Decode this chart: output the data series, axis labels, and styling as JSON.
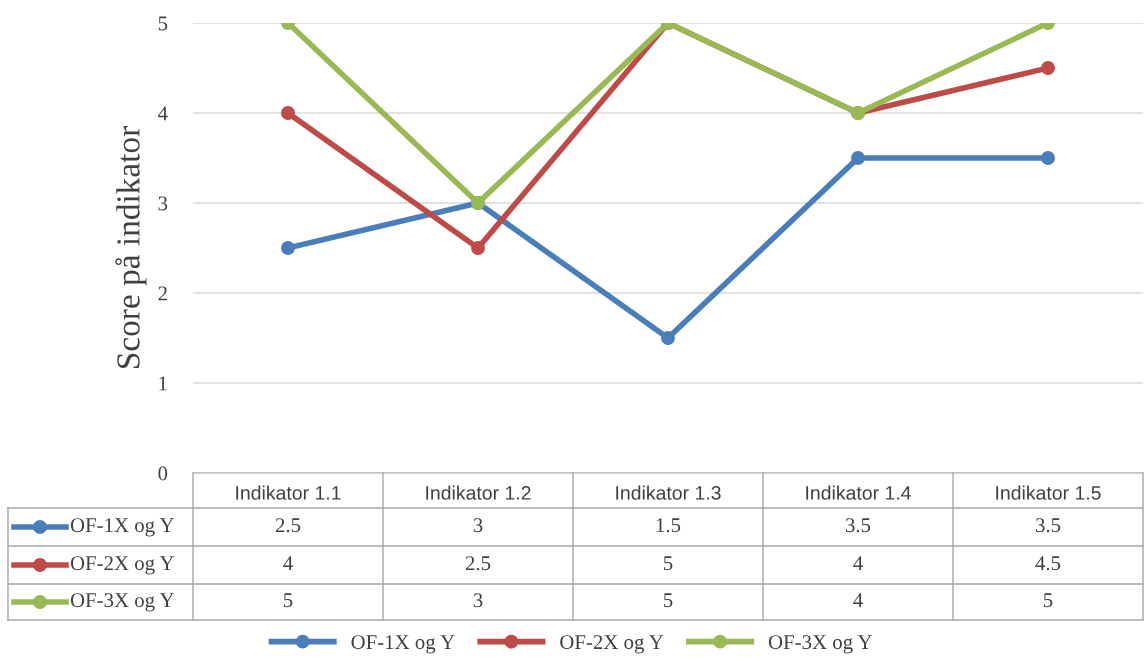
{
  "chart_data": {
    "type": "line",
    "ylabel": "Score på indikator",
    "categories": [
      "Indikator 1.1",
      "Indikator 1.2",
      "Indikator 1.3",
      "Indikator 1.4",
      "Indikator 1.5"
    ],
    "series": [
      {
        "name": "OF-1X og Y",
        "color": "#4a7ebb",
        "values": [
          2.5,
          3,
          1.5,
          3.5,
          3.5
        ]
      },
      {
        "name": "OF-2X og Y",
        "color": "#be4b48",
        "values": [
          4,
          2.5,
          5,
          4,
          4.5
        ]
      },
      {
        "name": "OF-3X og Y",
        "color": "#98b954",
        "values": [
          5,
          3,
          5,
          4,
          5
        ]
      }
    ],
    "ylim": [
      0,
      5
    ],
    "yticks": [
      0,
      1,
      2,
      3,
      4,
      5
    ],
    "grid": "y",
    "legend": "bottom",
    "marker": "circle",
    "line_style": "solid",
    "data_labels": true
  }
}
